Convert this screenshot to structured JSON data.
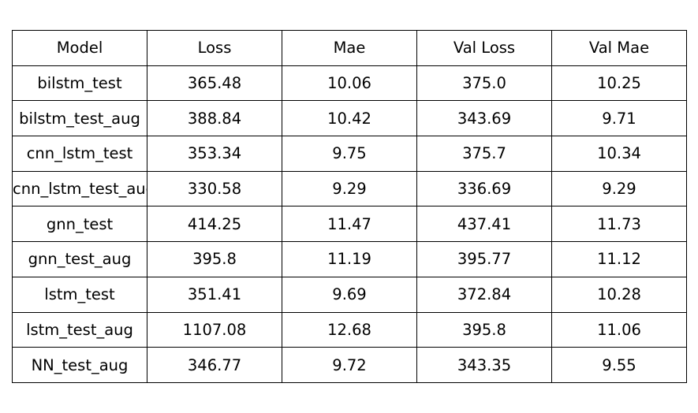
{
  "chart_data": {
    "type": "table",
    "columns": [
      "Model",
      "Loss",
      "Mae",
      "Val Loss",
      "Val Mae"
    ],
    "rows": [
      [
        "bilstm_test",
        "365.48",
        "10.06",
        "375.0",
        "10.25"
      ],
      [
        "bilstm_test_aug",
        "388.84",
        "10.42",
        "343.69",
        "9.71"
      ],
      [
        "cnn_lstm_test",
        "353.34",
        "9.75",
        "375.7",
        "10.34"
      ],
      [
        "cnn_lstm_test_aug",
        "330.58",
        "9.29",
        "336.69",
        "9.29"
      ],
      [
        "gnn_test",
        "414.25",
        "11.47",
        "437.41",
        "11.73"
      ],
      [
        "gnn_test_aug",
        "395.8",
        "11.19",
        "395.77",
        "11.12"
      ],
      [
        "lstm_test",
        "351.41",
        "9.69",
        "372.84",
        "10.28"
      ],
      [
        "lstm_test_aug",
        "1107.08",
        "12.68",
        "395.8",
        "11.06"
      ],
      [
        "NN_test_aug",
        "346.77",
        "9.72",
        "343.35",
        "9.55"
      ]
    ]
  }
}
